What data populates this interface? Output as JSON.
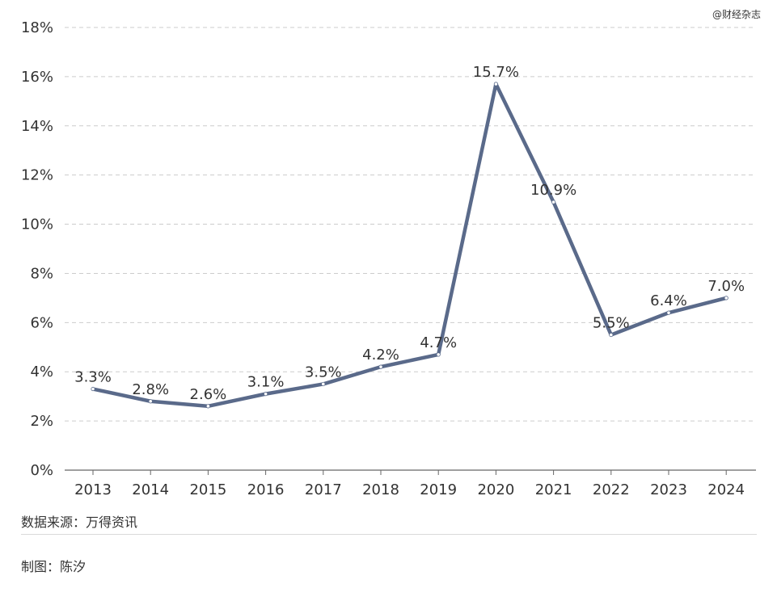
{
  "watermark": "@财经杂志",
  "footer": {
    "source": "数据来源：万得资讯",
    "author": "制图：陈汐"
  },
  "chart_data": {
    "type": "line",
    "x": [
      "2013",
      "2014",
      "2015",
      "2016",
      "2017",
      "2018",
      "2019",
      "2020",
      "2021",
      "2022",
      "2023",
      "2024"
    ],
    "series": [
      {
        "values": [
          3.3,
          2.8,
          2.6,
          3.1,
          3.5,
          4.2,
          4.7,
          15.7,
          10.9,
          5.5,
          6.4,
          7.0
        ]
      }
    ],
    "data_labels": [
      "3.3%",
      "2.8%",
      "2.6%",
      "3.1%",
      "3.5%",
      "4.2%",
      "4.7%",
      "15.7%",
      "10.9%",
      "5.5%",
      "6.4%",
      "7.0%"
    ],
    "y_ticks": [
      0,
      2,
      4,
      6,
      8,
      10,
      12,
      14,
      16,
      18
    ],
    "y_tick_labels": [
      "0%",
      "2%",
      "4%",
      "6%",
      "8%",
      "10%",
      "12%",
      "14%",
      "16%",
      "18%"
    ],
    "ylim": [
      0,
      18
    ],
    "grid": true,
    "title": "",
    "xlabel": "",
    "ylabel": "",
    "line_color": "#5a6a8a",
    "grid_color": "#cccccc"
  }
}
